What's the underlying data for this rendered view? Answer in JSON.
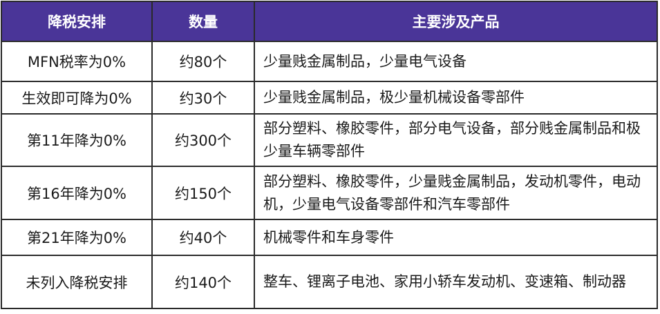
{
  "table": {
    "header_color": "#4a3598",
    "columns": [
      "降税安排",
      "数量",
      "主要涉及产品"
    ],
    "rows": [
      {
        "arrangement": "MFN税率为0%",
        "count": "约80个",
        "products": "少量贱金属制品，少量电气设备"
      },
      {
        "arrangement": "生效即可降为0%",
        "count": "约30个",
        "products": "少量贱金属制品，极少量机械设备零部件"
      },
      {
        "arrangement": "第11年降为0%",
        "count": "约300个",
        "products": "部分塑料、橡胶零件，部分电气设备，部分贱金属制品和极少量车辆零部件"
      },
      {
        "arrangement": "第16年降为0%",
        "count": "约150个",
        "products": "部分塑料、橡胶零件，少量贱金属制品，发动机零件，电动机，少量电气设备零部件和汽车零部件"
      },
      {
        "arrangement": "第21年降为0%",
        "count": "约40个",
        "products": "机械零件和车身零件"
      },
      {
        "arrangement": "未列入降税安排",
        "count": "约140个",
        "products": "整车、锂离子电池、家用小轿车发动机、变速箱、制动器"
      }
    ]
  }
}
